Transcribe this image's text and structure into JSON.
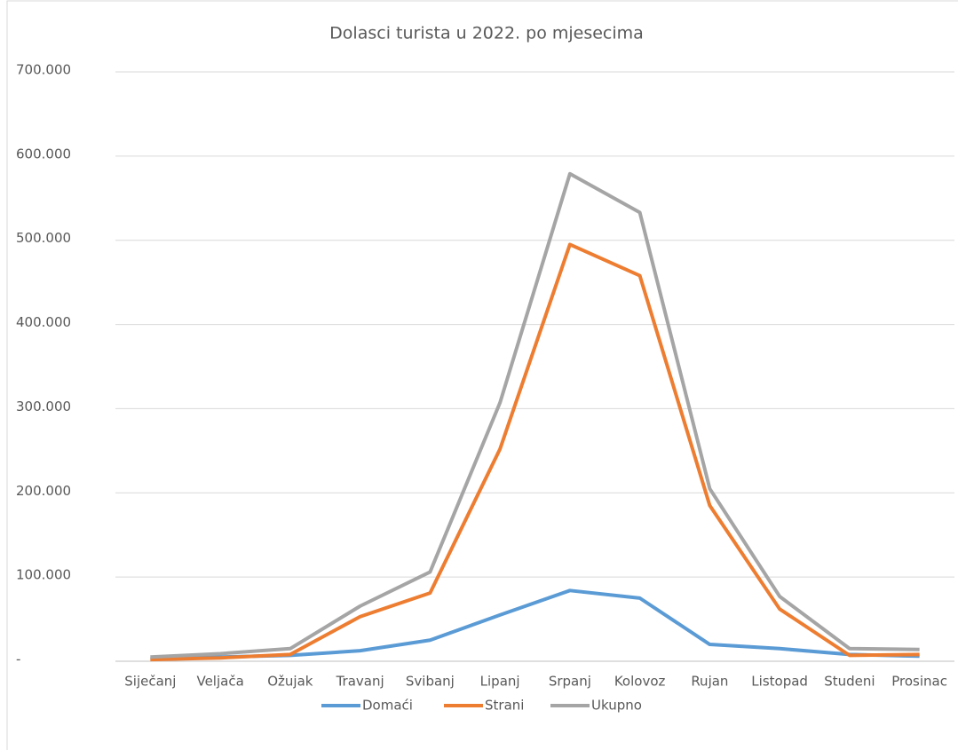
{
  "chart_data": {
    "type": "line",
    "title": "Dolasci turista u 2022. po mjesecima",
    "categories": [
      "Siječanj",
      "Veljača",
      "Ožujak",
      "Travanj",
      "Svibanj",
      "Lipanj",
      "Srpanj",
      "Kolovoz",
      "Rujan",
      "Listopad",
      "Studeni",
      "Prosinac"
    ],
    "series": [
      {
        "name": "Domaći",
        "color": "#5b9bd5",
        "values": [
          3000,
          5000,
          7000,
          12500,
          25000,
          55000,
          84000,
          75000,
          20000,
          15000,
          8000,
          6000
        ]
      },
      {
        "name": "Strani",
        "color": "#ed7d31",
        "values": [
          2000,
          4000,
          8000,
          53000,
          81000,
          252000,
          495000,
          458000,
          185000,
          62000,
          7000,
          8000
        ]
      },
      {
        "name": "Ukupno",
        "color": "#a5a5a5",
        "values": [
          5000,
          9000,
          15000,
          65500,
          106000,
          307000,
          579000,
          533000,
          205000,
          77000,
          15000,
          14000
        ]
      }
    ],
    "ylim": [
      0,
      700000
    ],
    "yticks": [
      {
        "value": 0,
        "label": "-"
      },
      {
        "value": 100000,
        "label": "100.000"
      },
      {
        "value": 200000,
        "label": "200.000"
      },
      {
        "value": 300000,
        "label": "300.000"
      },
      {
        "value": 400000,
        "label": "400.000"
      },
      {
        "value": 500000,
        "label": "500.000"
      },
      {
        "value": 600000,
        "label": "600.000"
      },
      {
        "value": 700000,
        "label": "700.000"
      }
    ],
    "grid": true,
    "legend": "bottom"
  }
}
